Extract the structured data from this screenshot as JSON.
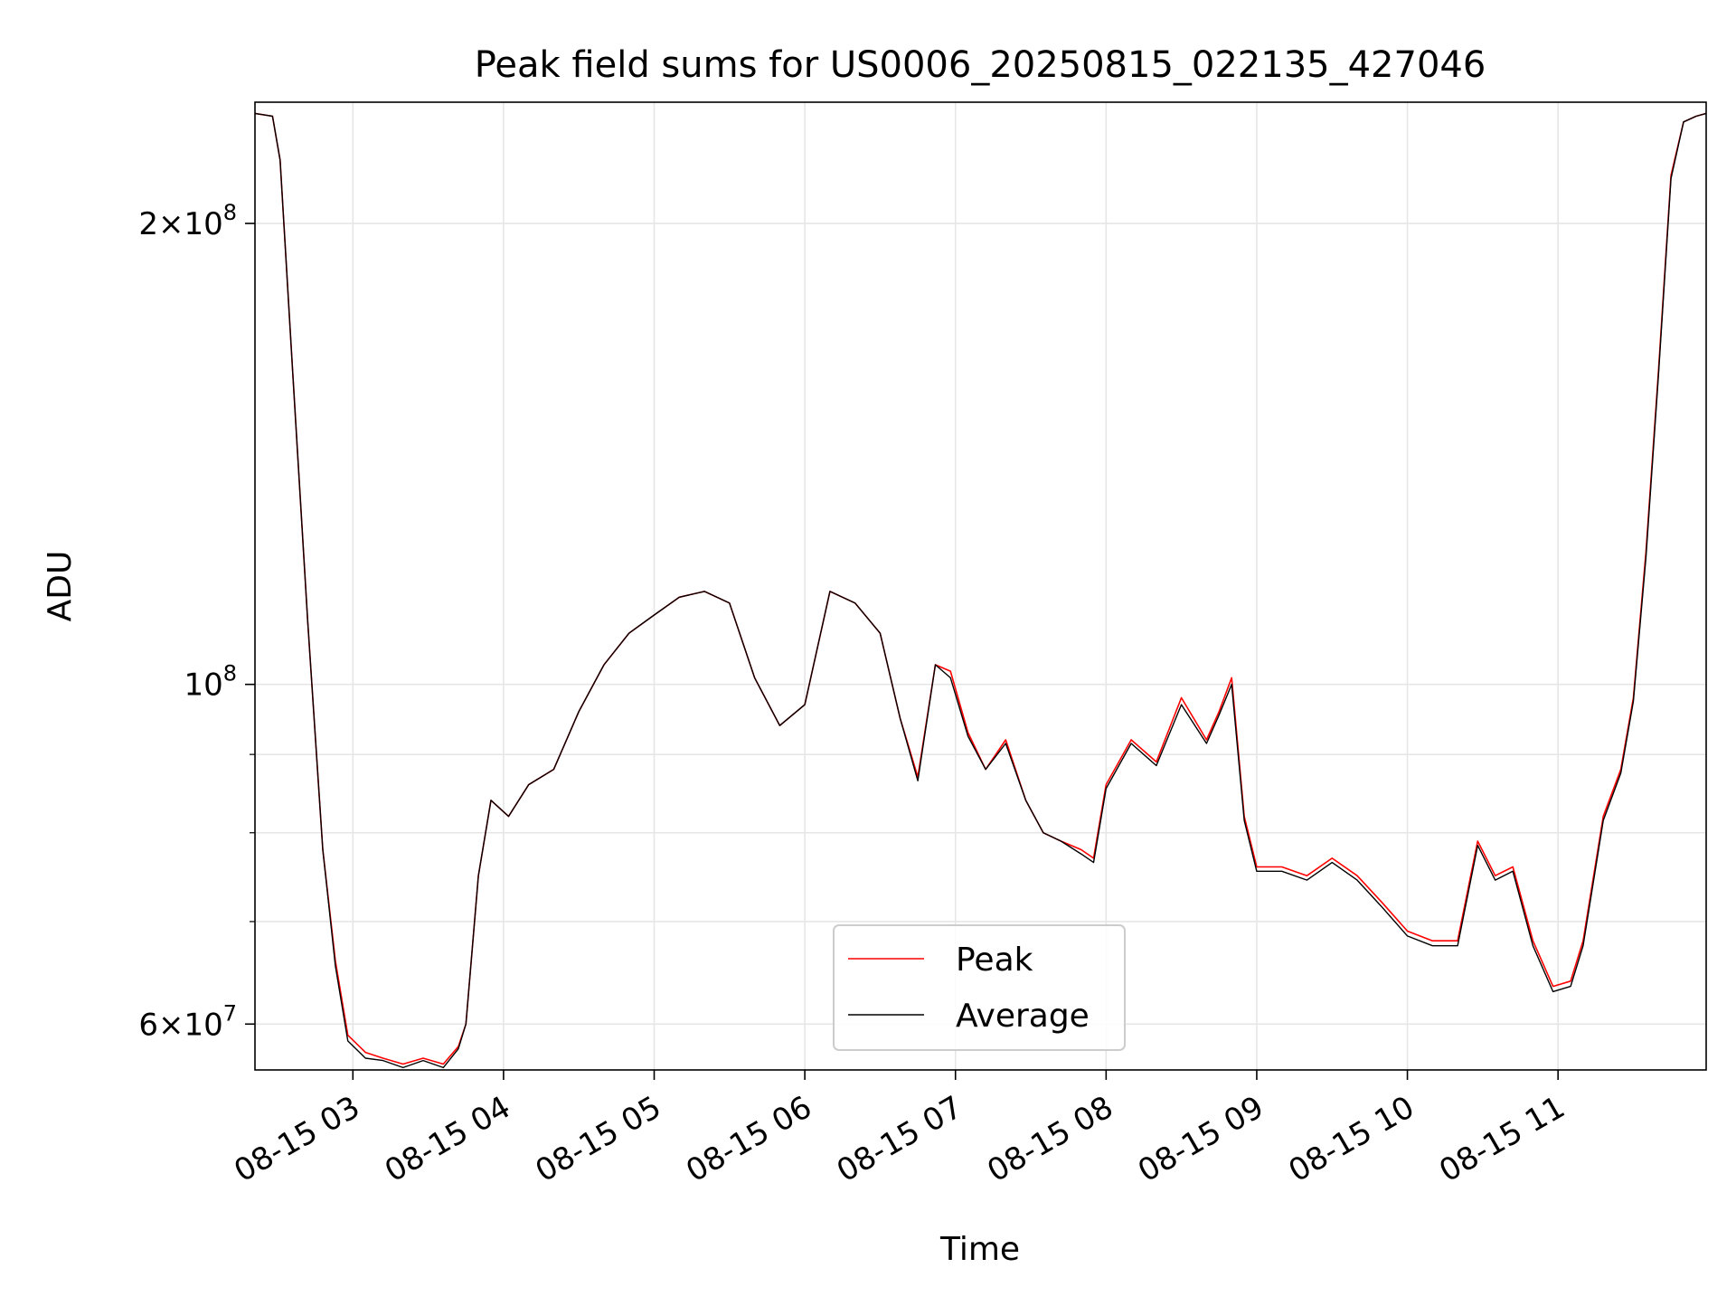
{
  "chart_data": {
    "type": "line",
    "title": "Peak field sums for US0006_20250815_022135_427046",
    "xlabel": "Time",
    "ylabel": "ADU",
    "y_scale": "log",
    "ylim": [
      56000000,
      240000000
    ],
    "xlim": [
      "08-15 02:21",
      "08-15 11:59"
    ],
    "grid": true,
    "legend_position": "lower center",
    "x_ticks": [
      {
        "value": "08-15 03:00",
        "label": "08-15 03"
      },
      {
        "value": "08-15 04:00",
        "label": "08-15 04"
      },
      {
        "value": "08-15 05:00",
        "label": "08-15 05"
      },
      {
        "value": "08-15 06:00",
        "label": "08-15 06"
      },
      {
        "value": "08-15 07:00",
        "label": "08-15 07"
      },
      {
        "value": "08-15 08:00",
        "label": "08-15 08"
      },
      {
        "value": "08-15 09:00",
        "label": "08-15 09"
      },
      {
        "value": "08-15 10:00",
        "label": "08-15 10"
      },
      {
        "value": "08-15 11:00",
        "label": "08-15 11"
      }
    ],
    "y_ticks_major": [
      {
        "value": 100000000,
        "base": "10",
        "exp": "8"
      },
      {
        "value": 200000000,
        "coef": "2",
        "base": "10",
        "exp": "8"
      },
      {
        "value": 60000000,
        "coef": "6",
        "base": "10",
        "exp": "7"
      }
    ],
    "y_ticks_minor": [
      70000000,
      80000000,
      90000000
    ],
    "x_time": [
      "08-15 02:21",
      "08-15 02:28",
      "08-15 02:31",
      "08-15 02:36",
      "08-15 02:42",
      "08-15 02:48",
      "08-15 02:53",
      "08-15 02:58",
      "08-15 03:05",
      "08-15 03:12",
      "08-15 03:20",
      "08-15 03:28",
      "08-15 03:36",
      "08-15 03:42",
      "08-15 03:45",
      "08-15 03:50",
      "08-15 03:55",
      "08-15 04:02",
      "08-15 04:10",
      "08-15 04:20",
      "08-15 04:30",
      "08-15 04:40",
      "08-15 04:50",
      "08-15 05:00",
      "08-15 05:10",
      "08-15 05:20",
      "08-15 05:30",
      "08-15 05:40",
      "08-15 05:50",
      "08-15 06:00",
      "08-15 06:10",
      "08-15 06:20",
      "08-15 06:30",
      "08-15 06:38",
      "08-15 06:45",
      "08-15 06:52",
      "08-15 06:58",
      "08-15 07:05",
      "08-15 07:12",
      "08-15 07:20",
      "08-15 07:28",
      "08-15 07:35",
      "08-15 07:42",
      "08-15 07:50",
      "08-15 07:55",
      "08-15 08:00",
      "08-15 08:10",
      "08-15 08:20",
      "08-15 08:30",
      "08-15 08:40",
      "08-15 08:45",
      "08-15 08:50",
      "08-15 08:55",
      "08-15 09:00",
      "08-15 09:10",
      "08-15 09:20",
      "08-15 09:30",
      "08-15 09:40",
      "08-15 09:50",
      "08-15 10:00",
      "08-15 10:10",
      "08-15 10:20",
      "08-15 10:28",
      "08-15 10:35",
      "08-15 10:42",
      "08-15 10:50",
      "08-15 10:58",
      "08-15 11:05",
      "08-15 11:10",
      "08-15 11:18",
      "08-15 11:25",
      "08-15 11:30",
      "08-15 11:35",
      "08-15 11:40",
      "08-15 11:45",
      "08-15 11:50",
      "08-15 11:55",
      "08-15 11:59"
    ],
    "series": [
      {
        "name": "Peak",
        "color": "#ff0000",
        "values": [
          236000000,
          235000000,
          220000000,
          160000000,
          110000000,
          78000000,
          66000000,
          59000000,
          57500000,
          57000000,
          56500000,
          57000000,
          56500000,
          58000000,
          60000000,
          75000000,
          84000000,
          82000000,
          86000000,
          88000000,
          96000000,
          103000000,
          108000000,
          111000000,
          114000000,
          115000000,
          113000000,
          101000000,
          94000000,
          97000000,
          115000000,
          113000000,
          108000000,
          95000000,
          87000000,
          103000000,
          102000000,
          93000000,
          88000000,
          92000000,
          84000000,
          80000000,
          79000000,
          78000000,
          77000000,
          86000000,
          92000000,
          89000000,
          98000000,
          92000000,
          96000000,
          101000000,
          82000000,
          76000000,
          76000000,
          75000000,
          77000000,
          75000000,
          72000000,
          69000000,
          68000000,
          68000000,
          79000000,
          75000000,
          76000000,
          68000000,
          63500000,
          64000000,
          68000000,
          82000000,
          88000000,
          98000000,
          122000000,
          160000000,
          215000000,
          233000000,
          235000000,
          236000000
        ]
      },
      {
        "name": "Average",
        "color": "#000000",
        "values": [
          236000000,
          235000000,
          220000000,
          160000000,
          110000000,
          78000000,
          65500000,
          58500000,
          57000000,
          56800000,
          56200000,
          56800000,
          56200000,
          57800000,
          60000000,
          75000000,
          84000000,
          82000000,
          86000000,
          88000000,
          96000000,
          103000000,
          108000000,
          111000000,
          114000000,
          115000000,
          113000000,
          101000000,
          94000000,
          97000000,
          115000000,
          113000000,
          108000000,
          95000000,
          86500000,
          103000000,
          101000000,
          92500000,
          88000000,
          91500000,
          84000000,
          80000000,
          79000000,
          77500000,
          76500000,
          85500000,
          91500000,
          88500000,
          97000000,
          91500000,
          95500000,
          100000000,
          81500000,
          75500000,
          75500000,
          74500000,
          76500000,
          74500000,
          71500000,
          68500000,
          67500000,
          67500000,
          78500000,
          74500000,
          75500000,
          67500000,
          63000000,
          63500000,
          67500000,
          81500000,
          87500000,
          97500000,
          121000000,
          159000000,
          214000000,
          233000000,
          235000000,
          236000000
        ]
      }
    ]
  }
}
